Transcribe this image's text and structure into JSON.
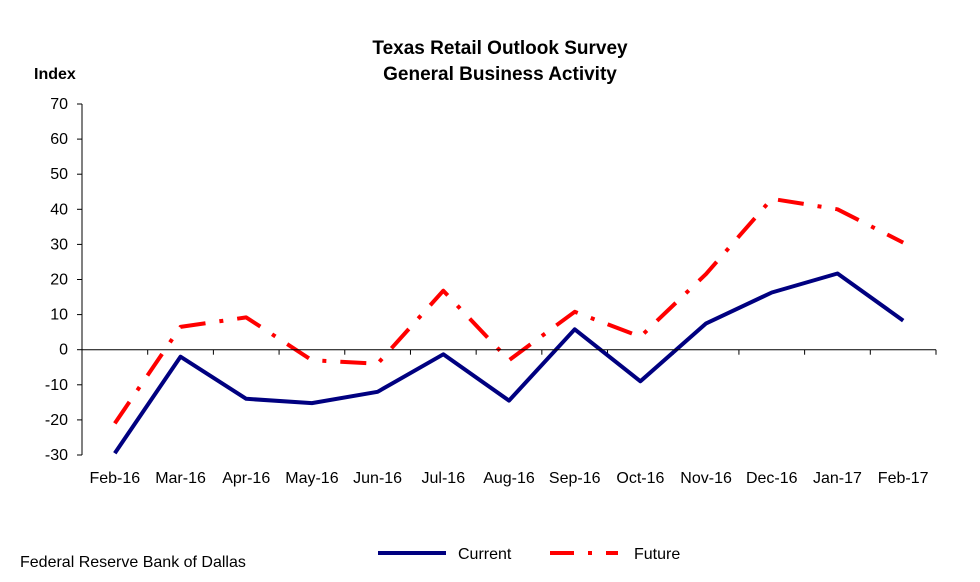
{
  "chart_data": {
    "type": "line",
    "title": "Texas Retail Outlook Survey",
    "subtitle": "General Business Activity",
    "ylabel": "Index",
    "xlabel": "",
    "ylim": [
      -30,
      70
    ],
    "y_ticks": [
      70,
      60,
      50,
      40,
      30,
      20,
      10,
      0,
      -10,
      -20,
      -30
    ],
    "categories": [
      "Feb-16",
      "Mar-16",
      "Apr-16",
      "May-16",
      "Jun-16",
      "Jul-16",
      "Aug-16",
      "Sep-16",
      "Oct-16",
      "Nov-16",
      "Dec-16",
      "Jan-17",
      "Feb-17"
    ],
    "series": [
      {
        "name": "Current",
        "color": "#000080",
        "style": "solid",
        "values": [
          -29.5,
          -2,
          -14,
          -15.2,
          -12,
          -1.3,
          -14.5,
          5.8,
          -9,
          7.5,
          16.3,
          21.7,
          8.3
        ]
      },
      {
        "name": "Future",
        "color": "#ff0000",
        "style": "dash-dot",
        "values": [
          -21,
          6.5,
          9.2,
          -3,
          -4,
          16.8,
          -3,
          10.8,
          3.7,
          21.6,
          43,
          40,
          30.5
        ]
      }
    ],
    "grid": false,
    "legend_position": "bottom-center",
    "source": "Federal Reserve Bank of Dallas"
  }
}
